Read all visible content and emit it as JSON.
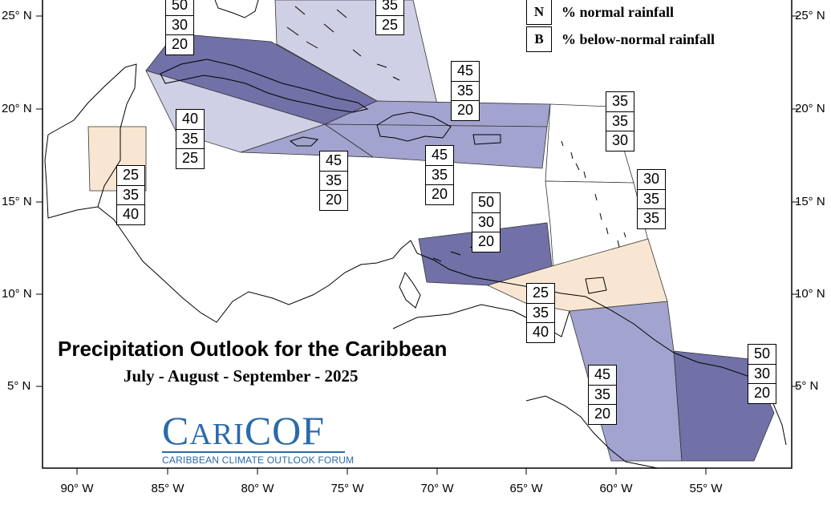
{
  "title": "Precipitation Outlook for the Caribbean",
  "subtitle": "July - August - September - 2025",
  "logo": {
    "name_big_1": "C",
    "name_small_1": "ARI",
    "name_big_2": "COF",
    "tagline": "CARIBBEAN CLIMATE OUTLOOK FORUM"
  },
  "legend": [
    {
      "key": "N",
      "label": "% normal rainfall"
    },
    {
      "key": "B",
      "label": "% below-normal rainfall"
    }
  ],
  "latitude_ticks": [
    "25° N",
    "20° N",
    "15° N",
    "10° N",
    "5° N"
  ],
  "longitude_ticks": [
    "90° W",
    "85° W",
    "80° W",
    "75° W",
    "70° W",
    "65° W",
    "60° W",
    "55° W"
  ],
  "colors": {
    "lavender_light": "#cfcfe5",
    "lavender_mid": "#a3a3cf",
    "purple_dark": "#7171a8",
    "peach": "#f9e6d2",
    "logo_blue": "#2a6aab"
  },
  "regions": [
    {
      "id": "bahamas",
      "color": "lavender_light",
      "probabilities": [
        "35",
        "25"
      ]
    },
    {
      "id": "cuba",
      "color": "purple_dark",
      "probabilities": [
        "50",
        "30",
        "20"
      ]
    },
    {
      "id": "western-caribbean",
      "color": "lavender_light",
      "probabilities": [
        "40",
        "35",
        "25"
      ]
    },
    {
      "id": "jamaica",
      "color": "lavender_mid",
      "probabilities": [
        "45",
        "35",
        "20"
      ]
    },
    {
      "id": "hispaniola-north",
      "color": "lavender_mid",
      "probabilities": [
        "45",
        "35",
        "20"
      ]
    },
    {
      "id": "hispaniola-south",
      "color": "lavender_mid",
      "probabilities": [
        "45",
        "35",
        "20"
      ]
    },
    {
      "id": "eastern-caribbean",
      "color": "none",
      "probabilities": [
        "35",
        "35",
        "30"
      ]
    },
    {
      "id": "lesser-antilles",
      "color": "none",
      "probabilities": [
        "30",
        "35",
        "35"
      ]
    },
    {
      "id": "belize",
      "color": "peach",
      "probabilities": [
        "25",
        "35",
        "40"
      ]
    },
    {
      "id": "abc-islands",
      "color": "purple_dark",
      "probabilities": [
        "50",
        "30",
        "20"
      ]
    },
    {
      "id": "trinidad-venezuela",
      "color": "peach",
      "probabilities": [
        "25",
        "35",
        "40"
      ]
    },
    {
      "id": "guyana",
      "color": "lavender_mid",
      "probabilities": [
        "45",
        "35",
        "20"
      ]
    },
    {
      "id": "suriname-guiana",
      "color": "purple_dark",
      "probabilities": [
        "50",
        "30",
        "20"
      ]
    }
  ]
}
